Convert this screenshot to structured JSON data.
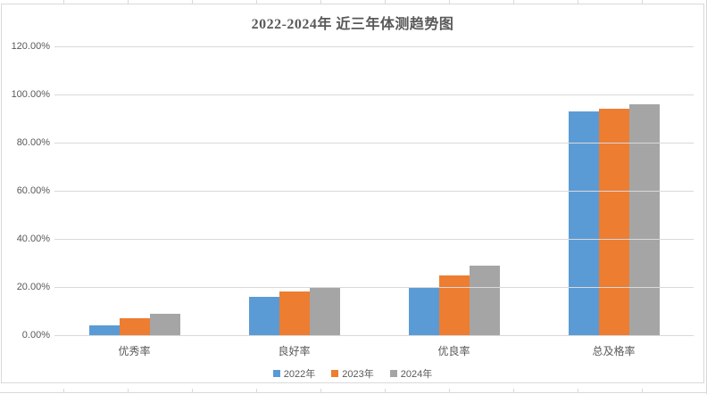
{
  "chart_data": {
    "type": "bar",
    "title": "2022-2024年 近三年体测趋势图",
    "categories": [
      "优秀率",
      "良好率",
      "优良率",
      "总及格率"
    ],
    "series": [
      {
        "name": "2022年",
        "color": "#5B9BD5",
        "values": [
          4,
          16,
          20,
          93
        ]
      },
      {
        "name": "2023年",
        "color": "#ED7D31",
        "values": [
          7,
          18,
          25,
          94
        ]
      },
      {
        "name": "2024年",
        "color": "#A5A5A5",
        "values": [
          9,
          20,
          29,
          96
        ]
      }
    ],
    "values_unit": "percent",
    "ylim": [
      0,
      120
    ],
    "ytick_step": 20,
    "ytick_labels": [
      "0.00%",
      "20.00%",
      "40.00%",
      "60.00%",
      "80.00%",
      "100.00%",
      "120.00%"
    ],
    "grid": true,
    "legend_position": "bottom",
    "xlabel": "",
    "ylabel": ""
  },
  "colors": {
    "axis_text": "#595959",
    "gridline": "#D9D9D9",
    "chart_border": "#D9D9D9",
    "background": "#FFFFFF"
  }
}
